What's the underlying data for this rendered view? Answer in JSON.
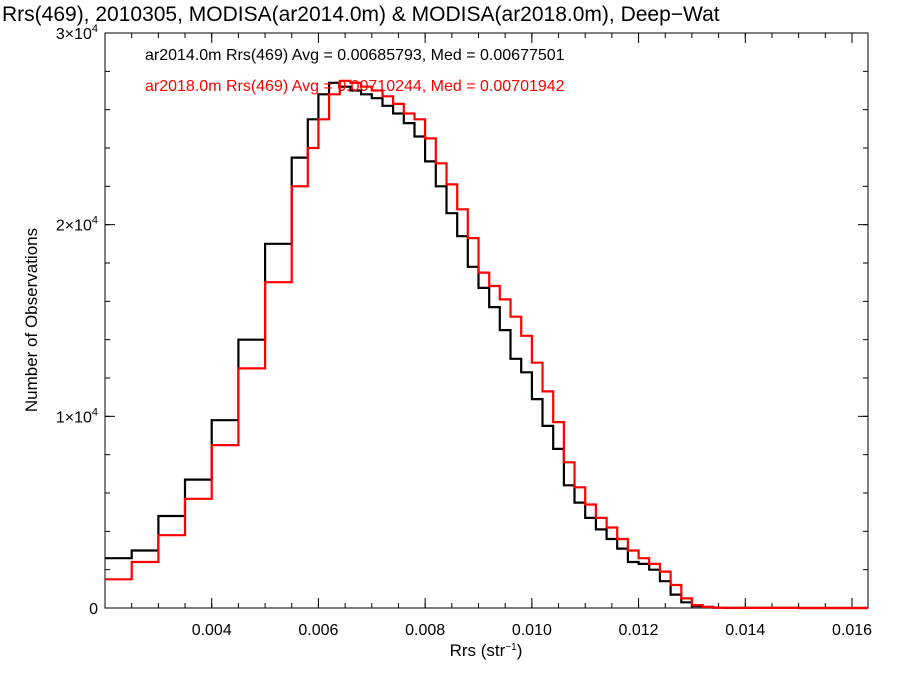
{
  "chart_data": {
    "type": "line",
    "title": "Rrs(469), 2010305, MODISA(ar2014.0m) & MODISA(ar2018.0m), Deep−Wat",
    "xlabel_base": "Rrs (str",
    "xlabel_sup": "−1",
    "xlabel_close": ")",
    "ylabel": "Number of Observations",
    "xlim": [
      0.002,
      0.0163
    ],
    "ylim": [
      0,
      30000
    ],
    "xticks": [
      {
        "value": 0.004,
        "label": "0.004"
      },
      {
        "value": 0.006,
        "label": "0.006"
      },
      {
        "value": 0.008,
        "label": "0.008"
      },
      {
        "value": 0.01,
        "label": "0.010"
      },
      {
        "value": 0.012,
        "label": "0.012"
      },
      {
        "value": 0.014,
        "label": "0.014"
      },
      {
        "value": 0.016,
        "label": "0.016"
      }
    ],
    "yticks": [
      {
        "value": 0,
        "mant": "",
        "sup": "",
        "plain": "0"
      },
      {
        "value": 10000,
        "mant": "1×10",
        "sup": "4",
        "plain": ""
      },
      {
        "value": 20000,
        "mant": "2×10",
        "sup": "4",
        "plain": ""
      },
      {
        "value": 30000,
        "mant": "3×10",
        "sup": "4",
        "plain": ""
      }
    ],
    "series": [
      {
        "name": "ar2014.0m",
        "legend": "ar2014.0m Rrs(469) Avg = 0.00685793, Med = 0.00677501",
        "color": "#000000",
        "x": [
          0.002,
          0.0025,
          0.003,
          0.0035,
          0.004,
          0.0045,
          0.005,
          0.0055,
          0.0058,
          0.006,
          0.0062,
          0.0064,
          0.0066,
          0.0068,
          0.007,
          0.0072,
          0.0074,
          0.0076,
          0.0078,
          0.008,
          0.0082,
          0.0084,
          0.0086,
          0.0088,
          0.009,
          0.0092,
          0.0094,
          0.0096,
          0.0098,
          0.01,
          0.0102,
          0.0104,
          0.0106,
          0.0108,
          0.011,
          0.0112,
          0.0114,
          0.0116,
          0.0118,
          0.012,
          0.0122,
          0.0124,
          0.0126,
          0.0128,
          0.013,
          0.0132,
          0.0134,
          0.0136,
          0.014,
          0.015,
          0.0163
        ],
        "y": [
          2600,
          3000,
          4800,
          6700,
          9800,
          14000,
          19000,
          23500,
          25500,
          26800,
          27400,
          27200,
          27000,
          26800,
          26600,
          26200,
          25800,
          25300,
          24600,
          23300,
          22000,
          20600,
          19400,
          17800,
          16700,
          15700,
          14500,
          13000,
          12300,
          10900,
          9500,
          8300,
          6400,
          5500,
          4700,
          4100,
          3600,
          3100,
          2400,
          2300,
          2000,
          1400,
          700,
          300,
          100,
          50,
          20,
          10,
          5,
          0,
          0
        ]
      },
      {
        "name": "ar2018.0m",
        "legend": "ar2018.0m Rrs(469) Avg = 0.00710244, Med = 0.00701942",
        "color": "#ff0000",
        "x": [
          0.002,
          0.0025,
          0.003,
          0.0035,
          0.004,
          0.0045,
          0.005,
          0.0055,
          0.0058,
          0.006,
          0.0062,
          0.0064,
          0.0066,
          0.0068,
          0.007,
          0.0072,
          0.0074,
          0.0076,
          0.0078,
          0.008,
          0.0082,
          0.0084,
          0.0086,
          0.0088,
          0.009,
          0.0092,
          0.0094,
          0.0096,
          0.0098,
          0.01,
          0.0102,
          0.0104,
          0.0106,
          0.0108,
          0.011,
          0.0112,
          0.0114,
          0.0116,
          0.0118,
          0.012,
          0.0122,
          0.0124,
          0.0126,
          0.0128,
          0.013,
          0.0132,
          0.0134,
          0.0136,
          0.014,
          0.015,
          0.0163
        ],
        "y": [
          1500,
          2400,
          3800,
          5700,
          8500,
          12500,
          17000,
          22000,
          24000,
          25500,
          26800,
          27500,
          27400,
          27200,
          27000,
          26700,
          26300,
          25800,
          25500,
          24500,
          23200,
          22100,
          20800,
          19300,
          17500,
          16800,
          16100,
          15200,
          14200,
          12800,
          11300,
          9700,
          7600,
          6300,
          5400,
          4700,
          4200,
          3600,
          3000,
          2600,
          2300,
          1900,
          1200,
          500,
          150,
          60,
          20,
          10,
          5,
          0,
          0
        ]
      }
    ],
    "grid": false,
    "legend_position": "top-left"
  }
}
